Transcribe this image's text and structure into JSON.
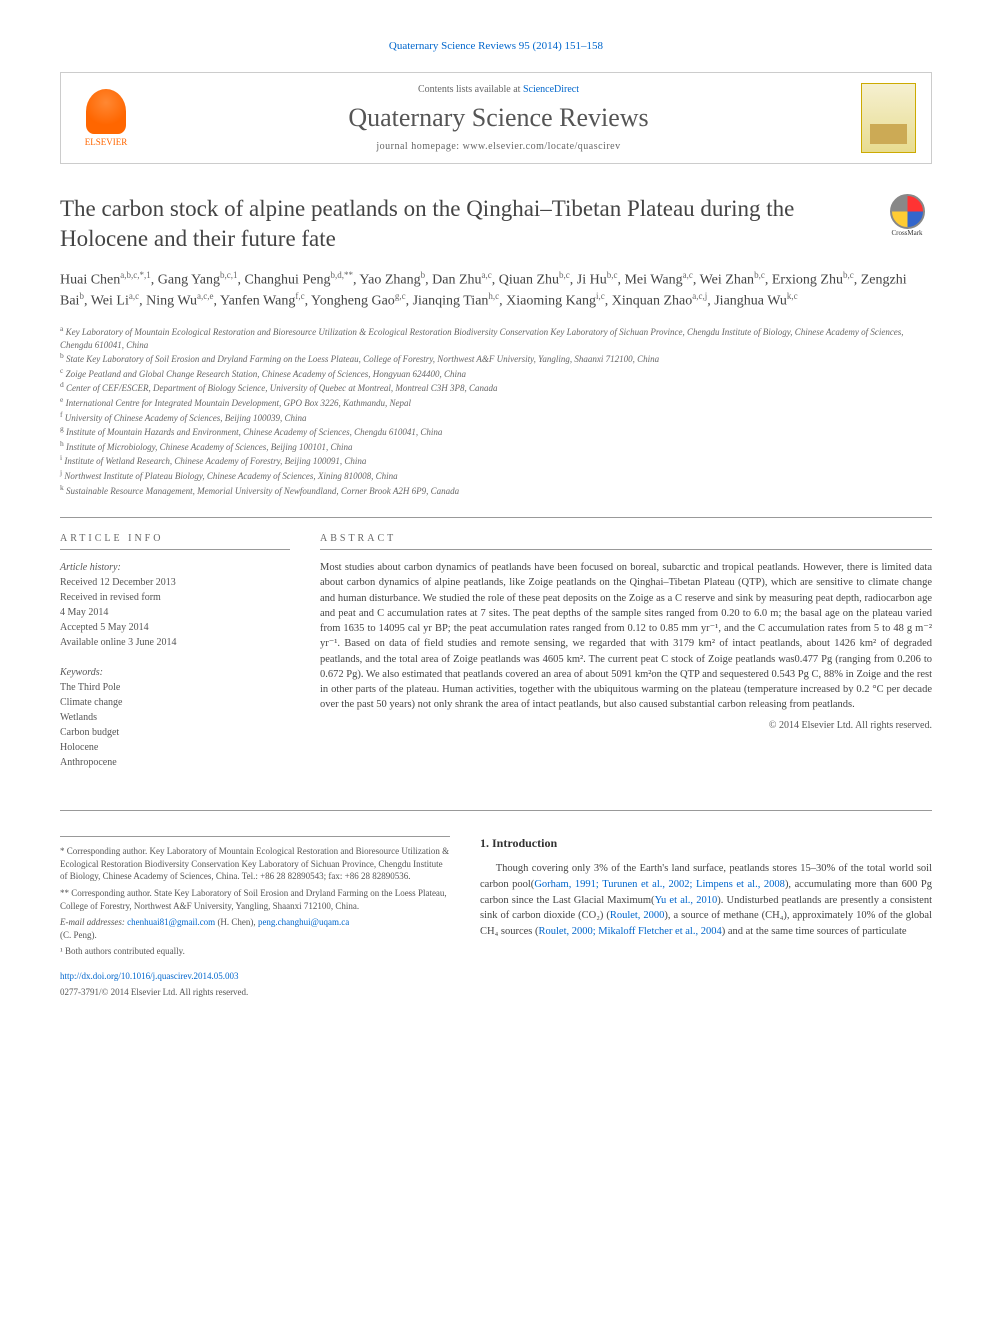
{
  "header": {
    "citation": "Quaternary Science Reviews 95 (2014) 151–158",
    "contents_prefix": "Contents lists available at ",
    "contents_link": "ScienceDirect",
    "journal_name": "Quaternary Science Reviews",
    "homepage_prefix": "journal homepage: ",
    "homepage_url": "www.elsevier.com/locate/quascirev",
    "elsevier_label": "ELSEVIER",
    "crossmark_label": "CrossMark"
  },
  "article": {
    "title": "The carbon stock of alpine peatlands on the Qinghai–Tibetan Plateau during the Holocene and their future fate",
    "authors_html": "Huai Chen<sup>a,b,c,*,1</sup>, Gang Yang<sup>b,c,1</sup>, Changhui Peng<sup>b,d,**</sup>, Yao Zhang<sup>b</sup>, Dan Zhu<sup>a,c</sup>, Qiuan Zhu<sup>b,c</sup>, Ji Hu<sup>b,c</sup>, Mei Wang<sup>a,c</sup>, Wei Zhan<sup>b,c</sup>, Erxiong Zhu<sup>b,c</sup>, Zengzhi Bai<sup>b</sup>, Wei Li<sup>a,c</sup>, Ning Wu<sup>a,c,e</sup>, Yanfen Wang<sup>f,c</sup>, Yongheng Gao<sup>g,c</sup>, Jianqing Tian<sup>h,c</sup>, Xiaoming Kang<sup>i,c</sup>, Xinquan Zhao<sup>a,c,j</sup>, Jianghua Wu<sup>k,c</sup>"
  },
  "affiliations": [
    {
      "sup": "a",
      "text": "Key Laboratory of Mountain Ecological Restoration and Bioresource Utilization & Ecological Restoration Biodiversity Conservation Key Laboratory of Sichuan Province, Chengdu Institute of Biology, Chinese Academy of Sciences, Chengdu 610041, China"
    },
    {
      "sup": "b",
      "text": "State Key Laboratory of Soil Erosion and Dryland Farming on the Loess Plateau, College of Forestry, Northwest A&F University, Yangling, Shaanxi 712100, China"
    },
    {
      "sup": "c",
      "text": "Zoige Peatland and Global Change Research Station, Chinese Academy of Sciences, Hongyuan 624400, China"
    },
    {
      "sup": "d",
      "text": "Center of CEF/ESCER, Department of Biology Science, University of Quebec at Montreal, Montreal C3H 3P8, Canada"
    },
    {
      "sup": "e",
      "text": "International Centre for Integrated Mountain Development, GPO Box 3226, Kathmandu, Nepal"
    },
    {
      "sup": "f",
      "text": "University of Chinese Academy of Sciences, Beijing 100039, China"
    },
    {
      "sup": "g",
      "text": "Institute of Mountain Hazards and Environment, Chinese Academy of Sciences, Chengdu 610041, China"
    },
    {
      "sup": "h",
      "text": "Institute of Microbiology, Chinese Academy of Sciences, Beijing 100101, China"
    },
    {
      "sup": "i",
      "text": "Institute of Wetland Research, Chinese Academy of Forestry, Beijing 100091, China"
    },
    {
      "sup": "j",
      "text": "Northwest Institute of Plateau Biology, Chinese Academy of Sciences, Xining 810008, China"
    },
    {
      "sup": "k",
      "text": "Sustainable Resource Management, Memorial University of Newfoundland, Corner Brook A2H 6P9, Canada"
    }
  ],
  "article_info": {
    "header": "ARTICLE INFO",
    "history_label": "Article history:",
    "history": [
      "Received 12 December 2013",
      "Received in revised form",
      "4 May 2014",
      "Accepted 5 May 2014",
      "Available online 3 June 2014"
    ],
    "keywords_label": "Keywords:",
    "keywords": [
      "The Third Pole",
      "Climate change",
      "Wetlands",
      "Carbon budget",
      "Holocene",
      "Anthropocene"
    ]
  },
  "abstract": {
    "header": "ABSTRACT",
    "text": "Most studies about carbon dynamics of peatlands have been focused on boreal, subarctic and tropical peatlands. However, there is limited data about carbon dynamics of alpine peatlands, like Zoige peatlands on the Qinghai–Tibetan Plateau (QTP), which are sensitive to climate change and human disturbance. We studied the role of these peat deposits on the Zoige as a C reserve and sink by measuring peat depth, radiocarbon age and peat and C accumulation rates at 7 sites. The peat depths of the sample sites ranged from 0.20 to 6.0 m; the basal age on the plateau varied from 1635 to 14095 cal yr BP; the peat accumulation rates ranged from 0.12 to 0.85 mm yr⁻¹, and the C accumulation rates from 5 to 48 g m⁻² yr⁻¹. Based on data of field studies and remote sensing, we regarded that with 3179 km² of intact peatlands, about 1426 km² of degraded peatlands, and the total area of Zoige peatlands was 4605 km². The current peat C stock of Zoige peatlands was0.477 Pg (ranging from 0.206 to 0.672 Pg). We also estimated that peatlands covered an area of about 5091 km²on the QTP and sequestered 0.543 Pg C, 88% in Zoige and the rest in other parts of the plateau. Human activities, together with the ubiquitous warming on the plateau (temperature increased by 0.2 °C per decade over the past 50 years) not only shrank the area of intact peatlands, but also caused substantial carbon releasing from peatlands.",
    "copyright": "© 2014 Elsevier Ltd. All rights reserved."
  },
  "correspondence": {
    "star1": "* Corresponding author. Key Laboratory of Mountain Ecological Restoration and Bioresource Utilization & Ecological Restoration Biodiversity Conservation Key Laboratory of Sichuan Province, Chengdu Institute of Biology, Chinese Academy of Sciences, China. Tel.: +86 28 82890543; fax: +86 28 82890536.",
    "star2": "** Corresponding author. State Key Laboratory of Soil Erosion and Dryland Farming on the Loess Plateau, College of Forestry, Northwest A&F University, Yangling, Shaanxi 712100, China.",
    "email_label": "E-mail addresses: ",
    "email1": "chenhuai81@gmail.com",
    "email1_name": " (H. Chen), ",
    "email2": "peng.changhui@uqam.ca",
    "email2_name": "(C. Peng).",
    "note1": "¹ Both authors contributed equally."
  },
  "introduction": {
    "heading": "1. Introduction",
    "para1_prefix": "Though covering only 3% of the Earth's land surface, peatlands stores 15–30% of the total world soil carbon pool(",
    "ref1": "Gorham, 1991; Turunen et al., 2002; Limpens et al., 2008",
    "para1_mid": "), accumulating more than 600 Pg carbon since the Last Glacial Maximum(",
    "ref2": "Yu et al., 2010",
    "para1_mid2": "). Undisturbed peatlands are presently a consistent sink of carbon dioxide (CO₂) (",
    "ref3": "Roulet, 2000",
    "para1_mid3": "), a source of methane (CH₄), approximately 10% of the global CH₄ sources (",
    "ref4": "Roulet, 2000; Mikaloff Fletcher et al., 2004",
    "para1_end": ") and at the same time sources of particulate"
  },
  "footer": {
    "doi": "http://dx.doi.org/10.1016/j.quascirev.2014.05.003",
    "issn": "0277-3791/© 2014 Elsevier Ltd. All rights reserved."
  },
  "colors": {
    "link": "#0066cc",
    "text": "#444444",
    "elsevier_orange": "#ff6600",
    "border": "#cccccc"
  }
}
